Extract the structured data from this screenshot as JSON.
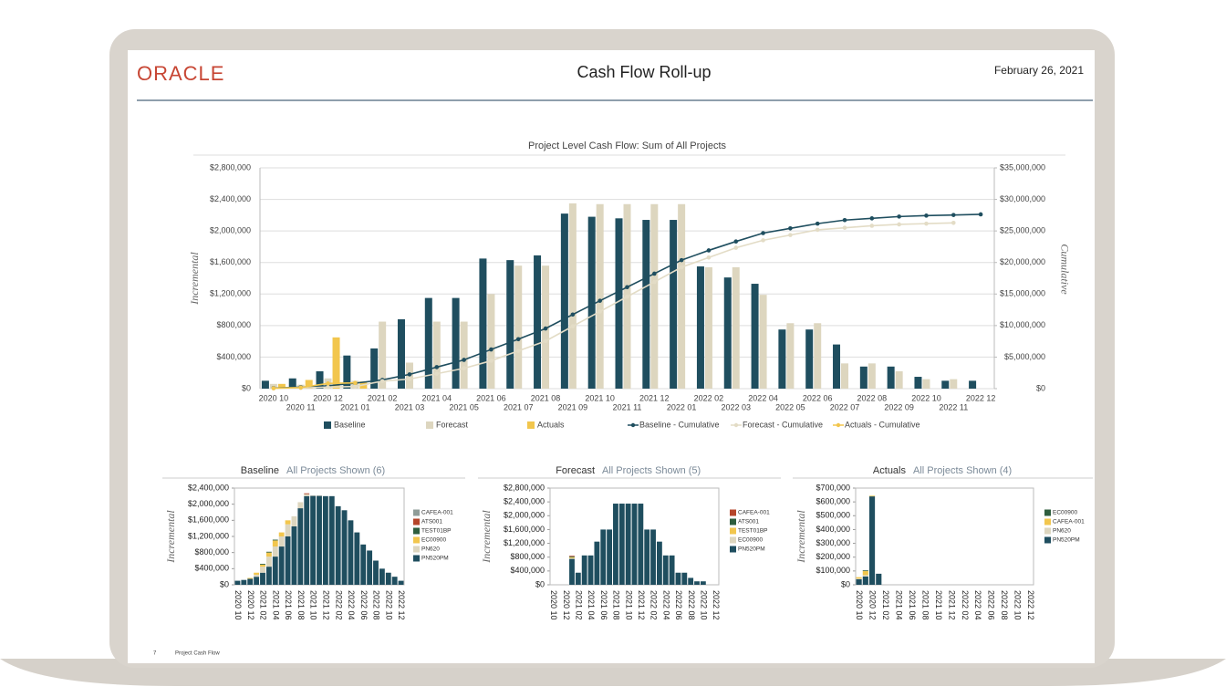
{
  "header": {
    "logo": "ORACLE",
    "title": "Cash Flow Roll-up",
    "date": "February 26, 2021"
  },
  "footer": {
    "page": "7",
    "label": "Project Cash Flow"
  },
  "chart_data": [
    {
      "type": "combo",
      "title": "Project Level Cash Flow: Sum of All Projects",
      "y_label": "Incremental",
      "y2_label": "Cumulative",
      "categories": [
        "2020 10",
        "2020 11",
        "2020 12",
        "2021 01",
        "2021 02",
        "2021 03",
        "2021 04",
        "2021 05",
        "2021 06",
        "2021 07",
        "2021 08",
        "2021 09",
        "2021 10",
        "2021 11",
        "2021 12",
        "2022 01",
        "2022 02",
        "2022 03",
        "2022 04",
        "2022 05",
        "2022 06",
        "2022 07",
        "2022 08",
        "2022 09",
        "2022 10",
        "2022 11",
        "2022 12"
      ],
      "ylim": [
        0,
        2800000
      ],
      "yticks": [
        {
          "value": 0,
          "label": "$0"
        },
        {
          "value": 400000,
          "label": "$400,000"
        },
        {
          "value": 800000,
          "label": "$800,000"
        },
        {
          "value": 1200000,
          "label": "$1,200,000"
        },
        {
          "value": 1600000,
          "label": "$1,600,000"
        },
        {
          "value": 2000000,
          "label": "$2,000,000"
        },
        {
          "value": 2400000,
          "label": "$2,400,000"
        },
        {
          "value": 2800000,
          "label": "$2,800,000"
        }
      ],
      "y2lim": [
        0,
        35000000
      ],
      "y2ticks": [
        {
          "value": 0,
          "label": "$0"
        },
        {
          "value": 5000000,
          "label": "$5,000,000"
        },
        {
          "value": 10000000,
          "label": "$10,000,000"
        },
        {
          "value": 15000000,
          "label": "$15,000,000"
        },
        {
          "value": 20000000,
          "label": "$20,000,000"
        },
        {
          "value": 25000000,
          "label": "$25,000,000"
        },
        {
          "value": 30000000,
          "label": "$30,000,000"
        },
        {
          "value": 35000000,
          "label": "$35,000,000"
        }
      ],
      "grid": true,
      "series": [
        {
          "name": "Baseline",
          "type": "bar",
          "color": "#1f4e5f",
          "values": [
            100000,
            130000,
            220000,
            420000,
            510000,
            880000,
            1150000,
            1150000,
            1650000,
            1630000,
            1690000,
            2220000,
            2180000,
            2160000,
            2140000,
            2140000,
            1550000,
            1410000,
            1330000,
            750000,
            750000,
            560000,
            280000,
            280000,
            150000,
            100000,
            100000
          ]
        },
        {
          "name": "Forecast",
          "type": "bar",
          "color": "#ddd6bf",
          "values": [
            60000,
            50000,
            130000,
            100000,
            850000,
            330000,
            850000,
            850000,
            1200000,
            1560000,
            1560000,
            2350000,
            2340000,
            2340000,
            2340000,
            2340000,
            1540000,
            1540000,
            1190000,
            830000,
            830000,
            320000,
            320000,
            220000,
            120000,
            120000,
            null
          ]
        },
        {
          "name": "Actuals",
          "type": "bar",
          "color": "#f2c64d",
          "values": [
            60000,
            110000,
            650000,
            90000,
            null,
            null,
            null,
            null,
            null,
            null,
            null,
            null,
            null,
            null,
            null,
            null,
            null,
            null,
            null,
            null,
            null,
            null,
            null,
            null,
            null,
            null,
            null
          ]
        },
        {
          "name": "Baseline - Cumulative",
          "type": "line",
          "axis": "y2",
          "color": "#1f4e5f",
          "values": [
            100000,
            230000,
            450000,
            870000,
            1380000,
            2260000,
            3410000,
            4560000,
            6210000,
            7840000,
            9530000,
            11750000,
            13930000,
            16090000,
            18230000,
            20370000,
            21920000,
            23330000,
            24660000,
            25410000,
            26160000,
            26720000,
            27000000,
            27280000,
            27430000,
            27530000,
            27630000
          ]
        },
        {
          "name": "Forecast - Cumulative",
          "type": "line",
          "axis": "y2",
          "color": "#e3dcc6",
          "values": [
            60000,
            110000,
            240000,
            340000,
            1190000,
            1520000,
            2370000,
            3220000,
            4420000,
            5980000,
            7540000,
            9890000,
            12230000,
            14570000,
            16910000,
            19250000,
            20790000,
            22330000,
            23520000,
            24350000,
            25180000,
            25500000,
            25820000,
            26040000,
            26160000,
            26280000,
            null
          ]
        },
        {
          "name": "Actuals - Cumulative",
          "type": "line",
          "axis": "y2",
          "color": "#f2c64d",
          "values": [
            60000,
            170000,
            820000,
            910000,
            null,
            null,
            null,
            null,
            null,
            null,
            null,
            null,
            null,
            null,
            null,
            null,
            null,
            null,
            null,
            null,
            null,
            null,
            null,
            null,
            null,
            null,
            null
          ]
        }
      ]
    },
    {
      "type": "stacked_bar",
      "title": "Baseline",
      "subtitle": "All Projects Shown (6)",
      "y_label": "Incremental",
      "categories": [
        "2020 10",
        null,
        "2020 12",
        null,
        "2021 02",
        null,
        "2021 04",
        null,
        "2021 06",
        null,
        "2021 08",
        null,
        "2021 10",
        null,
        "2021 12",
        null,
        "2022 02",
        null,
        "2022 04",
        null,
        "2022 06",
        null,
        "2022 08",
        null,
        "2022 10",
        null,
        "2022 12"
      ],
      "ylim": [
        0,
        2400000
      ],
      "yticks": [
        {
          "value": 0,
          "label": "$0"
        },
        {
          "value": 400000,
          "label": "$400,000"
        },
        {
          "value": 800000,
          "label": "$800,000"
        },
        {
          "value": 1200000,
          "label": "$1,200,000"
        },
        {
          "value": 1600000,
          "label": "$1,600,000"
        },
        {
          "value": 2000000,
          "label": "$2,000,000"
        },
        {
          "value": 2400000,
          "label": "$2,400,000"
        }
      ],
      "series": [
        {
          "name": "CAFEA-001",
          "color": "#8f9c98",
          "values": [
            0,
            0,
            0,
            0,
            0,
            0,
            0,
            0,
            0,
            0,
            0,
            0,
            20000,
            20000,
            0,
            0,
            0,
            0,
            0,
            0,
            0,
            0,
            0,
            0,
            0,
            0,
            0
          ]
        },
        {
          "name": "ATS001",
          "color": "#b5452a",
          "values": [
            0,
            0,
            0,
            0,
            0,
            0,
            0,
            0,
            0,
            0,
            0,
            20000,
            0,
            0,
            0,
            0,
            0,
            0,
            0,
            0,
            0,
            0,
            0,
            0,
            0,
            0,
            0
          ]
        },
        {
          "name": "TEST01BP",
          "color": "#2e5e3e",
          "values": [
            0,
            0,
            0,
            0,
            20000,
            20000,
            20000,
            0,
            0,
            0,
            0,
            0,
            0,
            0,
            0,
            0,
            0,
            0,
            0,
            0,
            0,
            0,
            0,
            0,
            0,
            0,
            0
          ]
        },
        {
          "name": "EC00900",
          "color": "#f2c64d",
          "values": [
            0,
            0,
            20000,
            50000,
            50000,
            100000,
            150000,
            100000,
            100000,
            0,
            0,
            0,
            0,
            0,
            0,
            0,
            0,
            0,
            0,
            0,
            0,
            0,
            0,
            0,
            0,
            0,
            0
          ]
        },
        {
          "name": "PN620",
          "color": "#ddd6bf",
          "values": [
            0,
            0,
            0,
            50000,
            150000,
            250000,
            250000,
            250000,
            300000,
            250000,
            150000,
            50000,
            0,
            0,
            0,
            0,
            0,
            0,
            0,
            0,
            0,
            0,
            0,
            0,
            0,
            0,
            0
          ]
        },
        {
          "name": "PN520PM",
          "color": "#1f4e5f",
          "values": [
            100000,
            120000,
            150000,
            200000,
            300000,
            450000,
            700000,
            950000,
            1200000,
            1450000,
            1900000,
            2200000,
            2200000,
            2200000,
            2200000,
            2200000,
            1950000,
            1850000,
            1600000,
            1300000,
            1000000,
            850000,
            600000,
            400000,
            300000,
            200000,
            100000
          ]
        }
      ]
    },
    {
      "type": "stacked_bar",
      "title": "Forecast",
      "subtitle": "All Projects Shown (5)",
      "y_label": "Incremental",
      "categories": [
        "2020 10",
        null,
        "2020 12",
        null,
        "2021 02",
        null,
        "2021 04",
        null,
        "2021 06",
        null,
        "2021 08",
        null,
        "2021 10",
        null,
        "2021 12",
        null,
        "2022 02",
        null,
        "2022 04",
        null,
        "2022 06",
        null,
        "2022 08",
        null,
        "2022 10",
        null,
        "2022 12"
      ],
      "ylim": [
        0,
        2800000
      ],
      "yticks": [
        {
          "value": 0,
          "label": "$0"
        },
        {
          "value": 400000,
          "label": "$400,000"
        },
        {
          "value": 800000,
          "label": "$800,000"
        },
        {
          "value": 1200000,
          "label": "$1,200,000"
        },
        {
          "value": 1600000,
          "label": "$1,600,000"
        },
        {
          "value": 2000000,
          "label": "$2,000,000"
        },
        {
          "value": 2400000,
          "label": "$2,400,000"
        },
        {
          "value": 2800000,
          "label": "$2,800,000"
        }
      ],
      "series": [
        {
          "name": "CAFEA-001",
          "color": "#b5452a",
          "values": [
            0,
            0,
            0,
            20000,
            0,
            0,
            0,
            0,
            0,
            0,
            0,
            0,
            0,
            0,
            0,
            0,
            0,
            0,
            0,
            0,
            0,
            0,
            0,
            0,
            0,
            0,
            0
          ]
        },
        {
          "name": "ATS001",
          "color": "#2e5e3e",
          "values": [
            0,
            0,
            0,
            20000,
            0,
            0,
            0,
            0,
            0,
            0,
            0,
            0,
            0,
            0,
            0,
            0,
            0,
            0,
            0,
            0,
            0,
            0,
            0,
            0,
            0,
            0,
            0
          ]
        },
        {
          "name": "TEST01BP",
          "color": "#f2c64d",
          "values": [
            0,
            0,
            0,
            30000,
            0,
            0,
            0,
            0,
            0,
            0,
            0,
            0,
            0,
            0,
            0,
            0,
            0,
            0,
            0,
            0,
            0,
            0,
            0,
            0,
            0,
            0,
            0
          ]
        },
        {
          "name": "EC00900",
          "color": "#ddd6bf",
          "values": [
            0,
            0,
            0,
            20000,
            0,
            0,
            0,
            0,
            0,
            0,
            0,
            0,
            0,
            0,
            0,
            0,
            0,
            0,
            0,
            0,
            0,
            0,
            0,
            0,
            0,
            0,
            0
          ]
        },
        {
          "name": "PN520PM",
          "color": "#1f4e5f",
          "values": [
            0,
            0,
            0,
            750000,
            350000,
            850000,
            850000,
            1250000,
            1600000,
            1600000,
            2350000,
            2350000,
            2350000,
            2350000,
            2350000,
            1600000,
            1600000,
            1250000,
            850000,
            850000,
            350000,
            350000,
            200000,
            100000,
            100000,
            0,
            0
          ]
        }
      ]
    },
    {
      "type": "stacked_bar",
      "title": "Actuals",
      "subtitle": "All Projects Shown (4)",
      "y_label": "Incremental",
      "categories": [
        "2020 10",
        null,
        "2020 12",
        null,
        "2021 02",
        null,
        "2021 04",
        null,
        "2021 06",
        null,
        "2021 08",
        null,
        "2021 10",
        null,
        "2021 12",
        null,
        "2022 02",
        null,
        "2022 04",
        null,
        "2022 06",
        null,
        "2022 08",
        null,
        "2022 10",
        null,
        "2022 12"
      ],
      "ylim": [
        0,
        700000
      ],
      "yticks": [
        {
          "value": 0,
          "label": "$0"
        },
        {
          "value": 100000,
          "label": "$100,000"
        },
        {
          "value": 200000,
          "label": "$200,000"
        },
        {
          "value": 300000,
          "label": "$300,000"
        },
        {
          "value": 400000,
          "label": "$400,000"
        },
        {
          "value": 500000,
          "label": "$500,000"
        },
        {
          "value": 600000,
          "label": "$600,000"
        },
        {
          "value": 700000,
          "label": "$700,000"
        }
      ],
      "series": [
        {
          "name": "EC00900",
          "color": "#2e5e3e",
          "values": [
            0,
            5000,
            0,
            0,
            0,
            0,
            0,
            0,
            0,
            0,
            0,
            0,
            0,
            0,
            0,
            0,
            0,
            0,
            0,
            0,
            0,
            0,
            0,
            0,
            0,
            0,
            0
          ]
        },
        {
          "name": "CAFEA-001",
          "color": "#f2c64d",
          "values": [
            10000,
            30000,
            5000,
            0,
            0,
            0,
            0,
            0,
            0,
            0,
            0,
            0,
            0,
            0,
            0,
            0,
            0,
            0,
            0,
            0,
            0,
            0,
            0,
            0,
            0,
            0,
            0
          ]
        },
        {
          "name": "PN620",
          "color": "#ddd6bf",
          "values": [
            5000,
            10000,
            0,
            0,
            0,
            0,
            0,
            0,
            0,
            0,
            0,
            0,
            0,
            0,
            0,
            0,
            0,
            0,
            0,
            0,
            0,
            0,
            0,
            0,
            0,
            0,
            0
          ]
        },
        {
          "name": "PN520PM",
          "color": "#1f4e5f",
          "values": [
            40000,
            60000,
            640000,
            80000,
            0,
            0,
            0,
            0,
            0,
            0,
            0,
            0,
            0,
            0,
            0,
            0,
            0,
            0,
            0,
            0,
            0,
            0,
            0,
            0,
            0,
            0,
            0
          ]
        }
      ]
    }
  ]
}
